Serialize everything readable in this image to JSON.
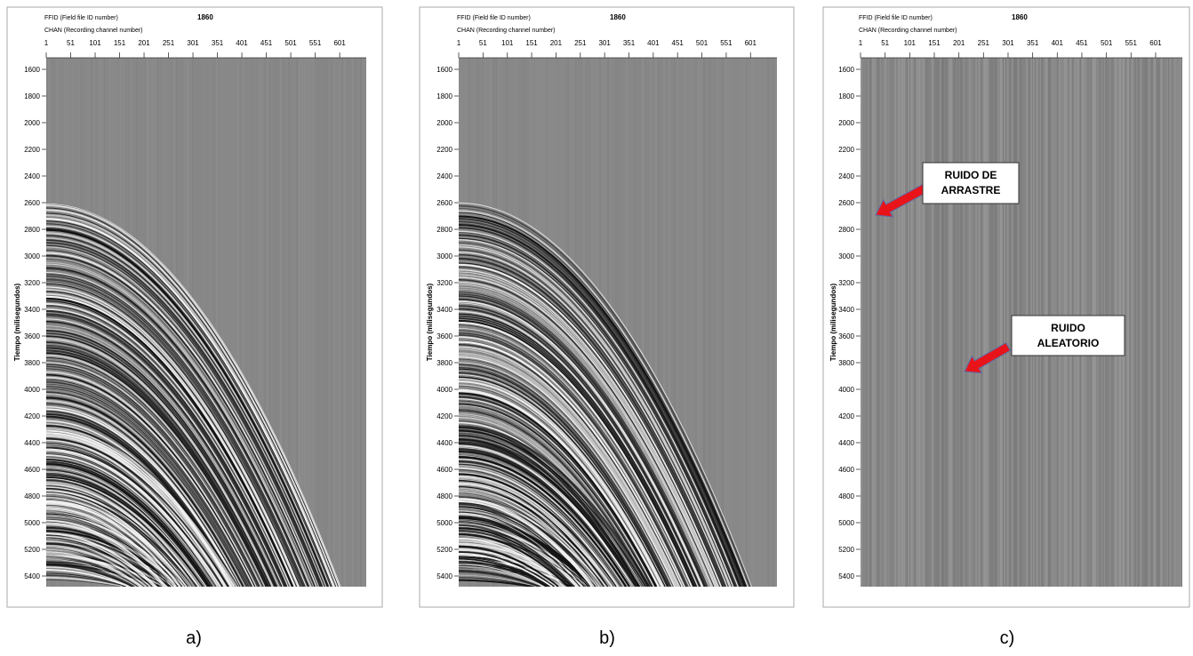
{
  "panels": [
    {
      "ffid_label": "FFID (Field file ID number)",
      "ffid_value": "1860",
      "chan_label": "CHAN (Recording channel number)",
      "x_ticks": [
        "1",
        "51",
        "101",
        "151",
        "201",
        "251",
        "301",
        "351",
        "401",
        "451",
        "501",
        "551",
        "601"
      ],
      "y_label": "Tiempo (milisegundos)",
      "y_ticks": [
        "1600",
        "1800",
        "2000",
        "2200",
        "2400",
        "2600",
        "2800",
        "3000",
        "3200",
        "3400",
        "3600",
        "3800",
        "4000",
        "4200",
        "4400",
        "4600",
        "4800",
        "5000",
        "5200",
        "5400"
      ],
      "caption": "a)"
    },
    {
      "ffid_label": "FFID (Field file ID number)",
      "ffid_value": "1860",
      "chan_label": "CHAN (Recording channel number)",
      "x_ticks": [
        "1",
        "51",
        "101",
        "151",
        "201",
        "251",
        "301",
        "351",
        "401",
        "451",
        "501",
        "551",
        "601"
      ],
      "y_label": "Tiempo (milisegundos)",
      "y_ticks": [
        "1600",
        "1800",
        "2000",
        "2200",
        "2400",
        "2600",
        "2800",
        "3000",
        "3200",
        "3400",
        "3600",
        "3800",
        "4000",
        "4200",
        "4400",
        "4600",
        "4800",
        "5000",
        "5200",
        "5400"
      ],
      "caption": "b)"
    },
    {
      "ffid_label": "FFID (Field file ID number)",
      "ffid_value": "1860",
      "chan_label": "CHAN (Recording channel number)",
      "x_ticks": [
        "1",
        "51",
        "101",
        "151",
        "201",
        "251",
        "301",
        "351",
        "401",
        "451",
        "501",
        "551",
        "601"
      ],
      "y_label": "Tiempo (milisegundos)",
      "y_ticks": [
        "1600",
        "1800",
        "2000",
        "2200",
        "2400",
        "2600",
        "2800",
        "3000",
        "3200",
        "3400",
        "3600",
        "3800",
        "4000",
        "4200",
        "4400",
        "4600",
        "4800",
        "5000",
        "5200",
        "5400"
      ],
      "caption": "c)",
      "annotations": [
        {
          "lines": [
            "RUIDO DE",
            "ARRASTRE"
          ]
        },
        {
          "lines": [
            "RUIDO",
            "ALEATORIO"
          ]
        }
      ]
    }
  ]
}
